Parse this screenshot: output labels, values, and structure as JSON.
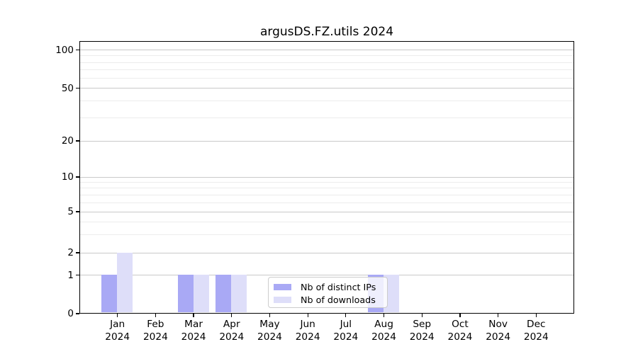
{
  "chart_data": {
    "type": "bar",
    "title": "argusDS.FZ.utils 2024",
    "categories": [
      "Jan 2024",
      "Feb 2024",
      "Mar 2024",
      "Apr 2024",
      "May 2024",
      "Jun 2024",
      "Jul 2024",
      "Aug 2024",
      "Sep 2024",
      "Oct 2024",
      "Nov 2024",
      "Dec 2024"
    ],
    "series": [
      {
        "name": "Nb of distinct IPs",
        "color": "#a9a9f5",
        "values": [
          1,
          0,
          1,
          1,
          0,
          0,
          0,
          1,
          0,
          0,
          0,
          0
        ]
      },
      {
        "name": "Nb of downloads",
        "color": "#dedef9",
        "values": [
          2,
          0,
          1,
          1,
          0,
          0,
          0,
          1,
          0,
          0,
          0,
          0
        ]
      }
    ],
    "xlabel": "",
    "ylabel": "",
    "yscale": "symlog",
    "ylim": [
      0,
      117
    ],
    "yticks": [
      0,
      1,
      2,
      5,
      10,
      20,
      50,
      100
    ],
    "ytick_labels": [
      "0",
      "1",
      "2",
      "5",
      "10",
      "20",
      "50",
      "100"
    ],
    "minor_yticks": [
      3,
      4,
      6,
      7,
      8,
      9,
      30,
      40,
      60,
      70,
      80,
      90
    ],
    "grid": "horizontal major and minor gridlines",
    "legend_position": "inside lower-center"
  },
  "colors": {
    "bar_distinct_ips": "#a9a9f5",
    "bar_downloads": "#dedef9",
    "grid_major": "#c9c9c9",
    "grid_minor": "#ececec",
    "axis": "#000000",
    "legend_border": "#cccccc",
    "background": "#ffffff"
  }
}
